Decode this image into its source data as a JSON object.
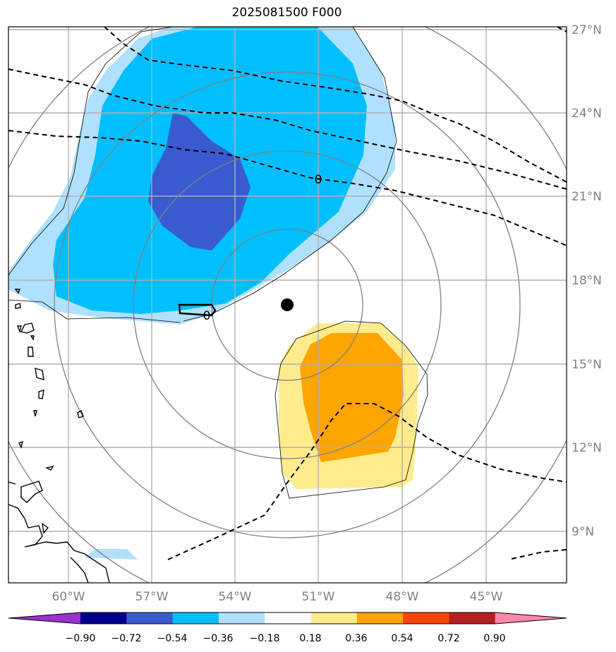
{
  "title": "2025081500 F000",
  "lat_labels": [
    "27°N",
    "24°N",
    "21°N",
    "18°N",
    "15°N",
    "12°N",
    "9°N"
  ],
  "lon_labels": [
    "60°W",
    "57°W",
    "54°W",
    "51°W",
    "48°W",
    "45°W"
  ],
  "contour_labels": [
    "0",
    "0"
  ],
  "colorbar": {
    "tick_labels": [
      "−0.90",
      "−0.72",
      "−0.54",
      "−0.36",
      "−0.18",
      "0.18",
      "0.36",
      "0.54",
      "0.72",
      "0.90"
    ],
    "colors": [
      "#9932cc",
      "#00008b",
      "#3a5bcf",
      "#00bfff",
      "#b0e0ff",
      "#ffffff",
      "#ffeb8c",
      "#ffa500",
      "#ff4500",
      "#b22222",
      "#ff88aa"
    ]
  },
  "map_colors": {
    "light_blue": "#b0e0ff",
    "blue": "#00bfff",
    "dark_blue": "#3a5bcf",
    "light_yellow": "#ffeb8c",
    "orange": "#ffa500",
    "gridline": "#b0b0b0",
    "range_ring": "#808080"
  }
}
